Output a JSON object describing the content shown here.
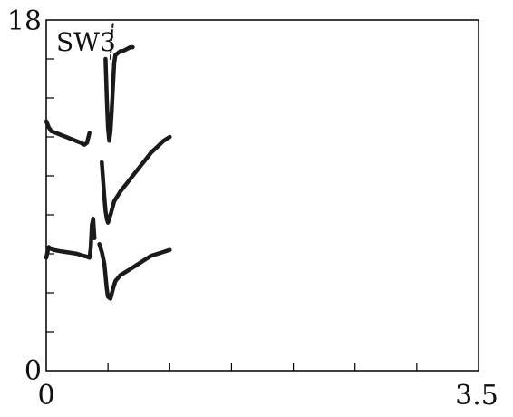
{
  "chart_data": {
    "type": "line",
    "title": "",
    "panel_label": "SW3",
    "xlabel": "",
    "ylabel": "",
    "xlim": [
      0,
      3.5
    ],
    "ylim": [
      0,
      18
    ],
    "x_tick_labels": [
      "0",
      "3.5"
    ],
    "y_tick_labels": [
      "0",
      "18"
    ],
    "x_minor_ticks": [
      0.5,
      1.0,
      1.5,
      2.0,
      2.5,
      3.0
    ],
    "y_minor_ticks": [
      2,
      4,
      6,
      8,
      10,
      12,
      14,
      16
    ],
    "grid": false,
    "legend": "none",
    "colors": {
      "trace": "#1a1a1a",
      "axis": "#000000"
    },
    "series": [
      {
        "x": [
          0.0,
          0.02,
          0.04,
          0.06,
          0.1,
          0.15,
          0.2,
          0.25,
          0.3,
          0.33,
          0.35,
          0.36,
          0.37,
          0.38,
          0.39
        ],
        "y": [
          5.8,
          6.35,
          6.25,
          6.2,
          6.15,
          6.1,
          6.05,
          6.0,
          5.9,
          5.85,
          5.8,
          6.3,
          7.5,
          7.8,
          6.8
        ]
      },
      {
        "x": [
          0.43,
          0.45,
          0.47,
          0.49,
          0.5,
          0.52,
          0.54,
          0.56,
          0.6,
          0.65,
          0.7,
          0.75,
          0.8,
          0.85,
          0.9,
          0.95,
          1.0
        ],
        "y": [
          6.5,
          6.1,
          5.5,
          4.2,
          3.8,
          3.7,
          4.2,
          4.6,
          4.9,
          5.1,
          5.3,
          5.5,
          5.7,
          5.9,
          6.0,
          6.1,
          6.2
        ]
      },
      {
        "x": [
          0.45,
          0.47,
          0.48,
          0.49,
          0.5,
          0.52,
          0.55,
          0.6,
          0.65,
          0.7,
          0.75,
          0.8,
          0.85,
          0.9,
          0.95,
          1.0
        ],
        "y": [
          10.7,
          8.9,
          8.2,
          7.8,
          7.6,
          8.0,
          8.7,
          9.2,
          9.6,
          10.0,
          10.4,
          10.8,
          11.2,
          11.5,
          11.8,
          12.0
        ]
      },
      {
        "x": [
          0.0,
          0.02,
          0.04,
          0.08,
          0.12,
          0.16,
          0.2,
          0.24,
          0.28,
          0.31,
          0.33,
          0.35
        ],
        "y": [
          12.8,
          12.5,
          12.3,
          12.2,
          12.1,
          12.0,
          11.9,
          11.8,
          11.7,
          11.6,
          11.7,
          12.2
        ]
      },
      {
        "x": [
          0.48,
          0.49,
          0.5,
          0.51,
          0.52,
          0.53,
          0.54,
          0.55,
          0.56,
          0.58,
          0.6,
          0.62,
          0.65,
          0.68,
          0.7
        ],
        "y": [
          16.0,
          14.0,
          12.5,
          11.8,
          12.3,
          13.3,
          14.6,
          15.8,
          16.2,
          16.3,
          16.4,
          16.4,
          16.5,
          16.6,
          16.6
        ]
      },
      {
        "x": [
          0.52,
          0.525,
          0.53,
          0.535,
          0.54
        ],
        "y": [
          16.0,
          16.6,
          17.1,
          17.5,
          17.8
        ]
      }
    ]
  }
}
